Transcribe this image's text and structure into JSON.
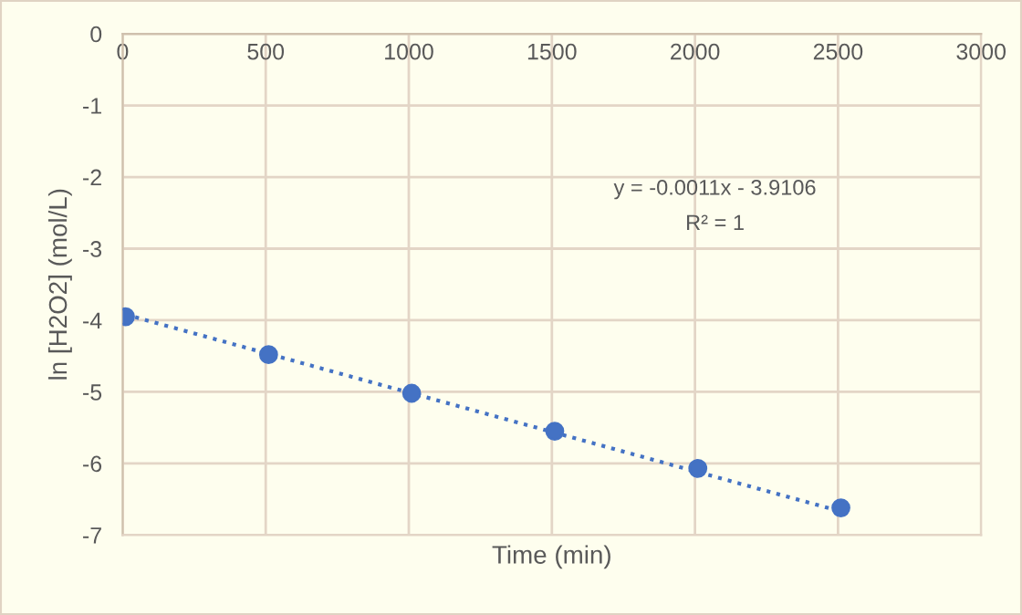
{
  "chart_data": {
    "type": "scatter",
    "xlabel": "Time (min)",
    "ylabel": "ln [H2O2] (mol/L)",
    "x": [
      10,
      510,
      1010,
      1510,
      2010,
      2510
    ],
    "series": [
      {
        "color": "#4472c4",
        "values": [
          -3.95,
          -4.48,
          -5.02,
          -5.55,
          -6.07,
          -6.62
        ],
        "marker": "circle"
      },
      {
        "type": "line",
        "color": "#4472c4",
        "x": [
          10,
          2510
        ],
        "values": [
          -3.92,
          -6.67
        ],
        "line_style": "dotted",
        "marker": "none"
      }
    ],
    "xlim": [
      0,
      3000
    ],
    "ylim": [
      -7,
      0
    ],
    "xticks": [
      0,
      500,
      1000,
      1500,
      2000,
      2500,
      3000
    ],
    "yticks": [
      -7,
      -6,
      -5,
      -4,
      -3,
      -2,
      -1,
      0
    ],
    "grid": true,
    "legend": false,
    "annotations": [
      "y = -0.0011x - 3.9106",
      "R² = 1"
    ]
  }
}
